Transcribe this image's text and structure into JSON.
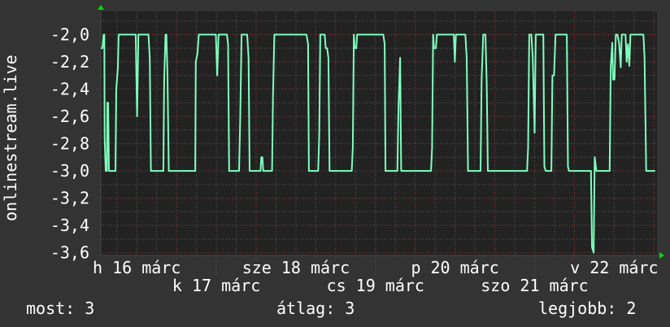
{
  "chart_data": {
    "type": "line",
    "ylabel": "onlinestream.live",
    "ylim": [
      -3.62,
      -1.83
    ],
    "xlim": [
      "03-16 01:09",
      "03-23 00:55"
    ],
    "y_ticks": [
      -2.0,
      -2.2,
      -2.4,
      -2.6,
      -2.8,
      -3.0,
      -3.2,
      -3.4,
      -3.6
    ],
    "y_tick_labels": [
      "-2,0",
      "-2,2",
      "-2,4",
      "-2,6",
      "-2,8",
      "-3,0",
      "-3,2",
      "-3,4",
      "-3,6"
    ],
    "x_tick_labels": [
      {
        "at": "03-16 12:00",
        "label": "h 16 márc"
      },
      {
        "at": "03-17 12:00",
        "label": "k 17 márc"
      },
      {
        "at": "03-18 12:00",
        "label": "sze 18 márc"
      },
      {
        "at": "03-19 12:00",
        "label": "cs 19 márc"
      },
      {
        "at": "03-20 12:00",
        "label": "p 20 márc"
      },
      {
        "at": "03-21 12:00",
        "label": "szo 21 márc"
      },
      {
        "at": "03-22 12:00",
        "label": "v 22 márc"
      }
    ],
    "grid": true,
    "colors": {
      "line": "#7fffbf",
      "background": "#333333",
      "plot": "#222222",
      "major_grid": "#8a3a3a",
      "minor_grid": "#555555",
      "arrow": "#00dd00"
    },
    "series": [
      {
        "x": [
          "03-16 01:09",
          "03-16 01:38",
          "03-16 02:00",
          "03-16 02:12",
          "03-16 02:18",
          "03-16 02:37",
          "03-16 02:59",
          "03-16 03:07",
          "03-16 03:21",
          "03-16 03:36",
          "03-16 05:34",
          "03-16 05:48",
          "03-16 06:18",
          "03-16 06:32",
          "03-16 11:41",
          "03-16 12:06",
          "03-16 12:29",
          "03-16 15:32",
          "03-16 15:55",
          "03-16 16:16",
          "03-16 20:00",
          "03-16 20:15",
          "03-16 20:40",
          "03-16 20:55",
          "03-16 21:14",
          "03-16 21:39",
          "03-17 05:38",
          "03-17 05:48",
          "03-17 06:18",
          "03-17 06:43",
          "03-17 11:51",
          "03-17 12:15",
          "03-17 12:40",
          "03-17 15:11",
          "03-17 15:32",
          "03-17 15:51",
          "03-17 18:51",
          "03-17 19:12",
          "03-17 19:36",
          "03-17 21:18",
          "03-17 21:43",
          "03-17 22:02",
          "03-18 01:19",
          "03-18 01:34",
          "03-18 01:53",
          "03-18 02:08",
          "03-18 04:49",
          "03-18 05:04",
          "03-18 05:29",
          "03-18 15:11",
          "03-18 15:40",
          "03-18 15:55",
          "03-18 18:43",
          "03-18 19:02",
          "03-18 19:21",
          "03-18 20:40",
          "03-18 20:59",
          "03-18 21:24",
          "03-18 21:48",
          "03-18 22:08",
          "03-19 04:50",
          "03-19 05:09",
          "03-19 05:29",
          "03-19 05:44",
          "03-19 06:13",
          "03-19 06:28",
          "03-19 14:21",
          "03-19 14:46",
          "03-19 15:01",
          "03-19 18:36",
          "03-19 18:56",
          "03-19 19:26",
          "03-19 19:45",
          "03-20 04:45",
          "03-20 05:04",
          "03-20 05:23",
          "03-20 05:38",
          "03-20 06:13",
          "03-20 06:32",
          "03-20 11:37",
          "03-20 11:56",
          "03-20 12:15",
          "03-20 15:07",
          "03-20 15:32",
          "03-20 15:55",
          "03-20 19:41",
          "03-20 20:01",
          "03-20 20:30",
          "03-20 21:10",
          "03-20 21:33",
          "03-20 21:54",
          "03-21 09:43",
          "03-21 10:03",
          "03-21 10:23",
          "03-21 11:01",
          "03-21 11:26",
          "03-21 12:00",
          "03-21 12:21",
          "03-21 14:37",
          "03-21 14:57",
          "03-21 15:21",
          "03-21 17:04",
          "03-21 17:23",
          "03-21 17:52",
          "03-21 18:18",
          "03-21 21:43",
          "03-21 22:03",
          "03-21 22:23",
          "03-22 05:00",
          "03-22 05:19",
          "03-22 05:48",
          "03-22 06:08",
          "03-22 06:37",
          "03-22 10:38",
          "03-22 10:57",
          "03-22 11:26",
          "03-22 11:41",
          "03-22 12:06",
          "03-22 12:30",
          "03-22 12:59",
          "03-22 13:29",
          "03-22 13:58",
          "03-22 14:18",
          "03-22 15:26",
          "03-22 15:46",
          "03-22 16:10",
          "03-22 16:35",
          "03-22 16:54",
          "03-22 20:49",
          "03-22 21:10",
          "03-22 21:39",
          "03-23 00:21"
        ],
        "y": [
          -2.1,
          -2.1,
          -2.0,
          -2.0,
          -2.76,
          -3.0,
          -3.0,
          -2.5,
          -2.5,
          -3.0,
          -3.0,
          -2.4,
          -2.24,
          -2.0,
          -2.0,
          -2.6,
          -2.0,
          -2.0,
          -2.17,
          -3.0,
          -3.0,
          -2.33,
          -2.0,
          -2.0,
          -2.27,
          -3.0,
          -3.0,
          -2.2,
          -2.14,
          -2.0,
          -2.0,
          -2.3,
          -2.0,
          -2.0,
          -2.07,
          -3.0,
          -3.0,
          -2.63,
          -2.0,
          -2.0,
          -2.17,
          -3.0,
          -3.0,
          -2.9,
          -2.9,
          -3.0,
          -3.0,
          -2.47,
          -2.0,
          -2.0,
          -2.07,
          -3.0,
          -3.0,
          -2.74,
          -2.0,
          -2.0,
          -2.1,
          -2.1,
          -2.17,
          -3.0,
          -3.0,
          -2.83,
          -2.0,
          -2.1,
          -2.1,
          -2.0,
          -2.0,
          -2.07,
          -3.0,
          -3.0,
          -2.53,
          -2.17,
          -3.0,
          -3.0,
          -2.83,
          -2.0,
          -2.1,
          -2.1,
          -2.0,
          -2.0,
          -2.2,
          -2.0,
          -2.0,
          -2.17,
          -3.0,
          -3.0,
          -2.33,
          -2.0,
          -2.0,
          -2.36,
          -3.0,
          -3.0,
          -2.83,
          -2.0,
          -2.0,
          -2.17,
          -2.72,
          -2.0,
          -2.0,
          -2.97,
          -3.0,
          -3.0,
          -2.3,
          -2.3,
          -2.0,
          -2.0,
          -2.97,
          -3.0,
          -3.0,
          -3.56,
          -3.6,
          -2.9,
          -3.0,
          -3.0,
          -2.24,
          -2.06,
          -2.33,
          -2.33,
          -2.0,
          -2.0,
          -2.06,
          -2.24,
          -2.0,
          -2.0,
          -2.2,
          -2.07,
          -2.23,
          -2.0,
          -2.0,
          -2.17,
          -3.0,
          -3.0
        ]
      }
    ]
  },
  "legend": {
    "current": "most: 3",
    "average": "átlag: 3",
    "best": "legjobb: 2"
  }
}
